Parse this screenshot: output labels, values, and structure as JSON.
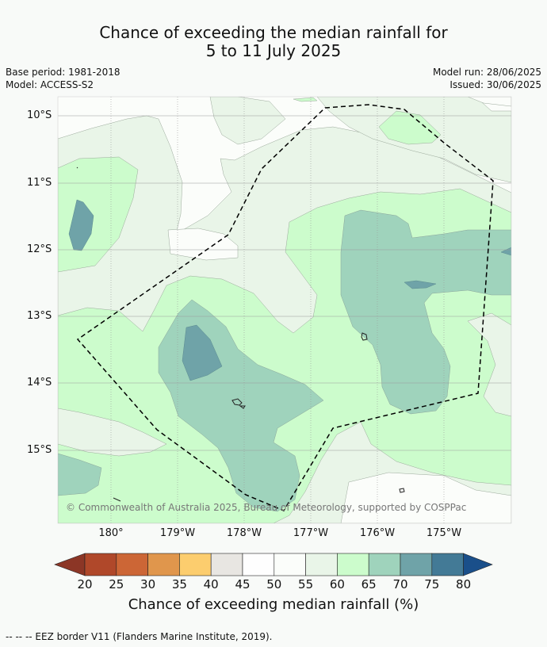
{
  "title": {
    "line1": "Chance of exceeding the median rainfall for",
    "line2": "5 to 11 July 2025"
  },
  "meta": {
    "base_period": "Base period: 1981-2018",
    "model": "Model: ACCESS-S2",
    "model_run": "Model run: 28/06/2025",
    "issued": "Issued: 30/06/2025"
  },
  "axes": {
    "lat_labels": [
      "10°S",
      "11°S",
      "12°S",
      "13°S",
      "14°S",
      "15°S"
    ],
    "lon_labels": [
      "180°",
      "179°W",
      "178°W",
      "177°W",
      "176°W",
      "175°W"
    ]
  },
  "copyright": "© Commonwealth of Australia 2025, Bureau of Meteorology, supported by COSPPac",
  "colorbar": {
    "ticks": [
      "20",
      "25",
      "30",
      "35",
      "40",
      "45",
      "50",
      "55",
      "60",
      "65",
      "70",
      "75",
      "80"
    ],
    "colors": {
      "below20": "#8c3626",
      "20-25": "#b0482a",
      "25-30": "#cc6636",
      "30-35": "#e0964c",
      "35-40": "#fccd6e",
      "40-45": "#e8e6e2",
      "45-50": "#fefefe",
      "50-55": "#fbfdfa",
      "55-60": "#e9f5e8",
      "60-65": "#ccfccc",
      "65-70": "#9fd3bc",
      "70-75": "#6fa3a8",
      "75-80": "#437a96",
      "above80": "#1a4f8a"
    },
    "label": "Chance of exceeding median rainfall (%)"
  },
  "footer": "--  --  -- EEZ border V11 (Flanders Marine Institute, 2019)."
}
